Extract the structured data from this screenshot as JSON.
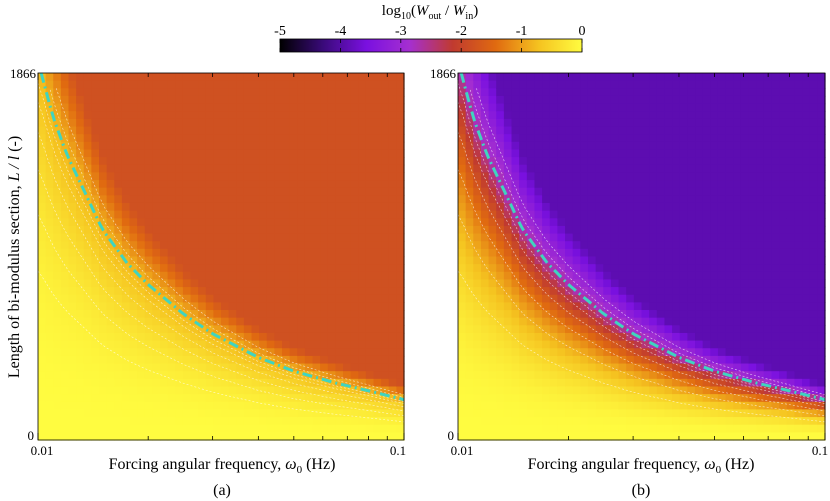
{
  "colorbar": {
    "title": "log10(Wout / Win)",
    "title_parts": {
      "pre": "log",
      "sub10": "10",
      "open": "(",
      "W1": "W",
      "sub1": "out",
      "slash": " / ",
      "W2": "W",
      "sub2": "in",
      "close": ")"
    },
    "ticks": [
      "-5",
      "-4",
      "-3",
      "-2",
      "-1",
      "0"
    ],
    "range": [
      -5,
      0
    ],
    "colors": [
      "#000000",
      "#3a0a7a",
      "#7a10e0",
      "#a52fd0",
      "#c03a30",
      "#e06a10",
      "#f5c320",
      "#fffc40"
    ]
  },
  "chart_data": [
    {
      "type": "heatmap",
      "panel_label": "(a)",
      "xlabel": "Forcing angular frequency, ω0 (Hz)",
      "xlabel_parts": {
        "text": "Forcing angular frequency, ",
        "sym": "ω",
        "sub": "0",
        "unit": " (Hz)"
      },
      "ylabel": "Length of bi-modulus section, L / l (-)",
      "ylabel_parts": {
        "text": "Length of bi-modulus section, ",
        "sym": "L / l",
        "unit": " (-)"
      },
      "xscale": "log",
      "xlim": [
        0.01,
        0.1
      ],
      "xticks": [
        "0.01",
        "0.1"
      ],
      "ylim": [
        0,
        1866
      ],
      "yticks": [
        "0",
        "1866"
      ],
      "colormap_range": [
        -5,
        0
      ],
      "plateau_level": -1.8,
      "critical_curve": {
        "style": "dash-dot",
        "color": "#3fd4c0",
        "x": [
          0.0102,
          0.011,
          0.012,
          0.0135,
          0.015,
          0.0175,
          0.02,
          0.025,
          0.03,
          0.04,
          0.05,
          0.065,
          0.08,
          0.1
        ],
        "y": [
          1866,
          1640,
          1450,
          1250,
          1070,
          900,
          790,
          640,
          540,
          420,
          350,
          290,
          250,
          205
        ]
      }
    },
    {
      "type": "heatmap",
      "panel_label": "(b)",
      "xlabel": "Forcing angular frequency, ω0 (Hz)",
      "xlabel_parts": {
        "text": "Forcing angular frequency, ",
        "sym": "ω",
        "sub": "0",
        "unit": " (Hz)"
      },
      "xscale": "log",
      "xlim": [
        0.01,
        0.1
      ],
      "xticks": [
        "0.01",
        "0.1"
      ],
      "ylim": [
        0,
        1866
      ],
      "yticks": [
        "0",
        "1866"
      ],
      "colormap_range": [
        -5,
        0
      ],
      "plateau_level": -3.9,
      "critical_curve": {
        "style": "dash-dot",
        "color": "#3fd4c0",
        "x": [
          0.0102,
          0.011,
          0.012,
          0.0135,
          0.015,
          0.0175,
          0.02,
          0.025,
          0.03,
          0.04,
          0.05,
          0.065,
          0.08,
          0.1
        ],
        "y": [
          1866,
          1640,
          1450,
          1250,
          1070,
          900,
          790,
          640,
          540,
          420,
          350,
          290,
          250,
          205
        ]
      }
    }
  ]
}
